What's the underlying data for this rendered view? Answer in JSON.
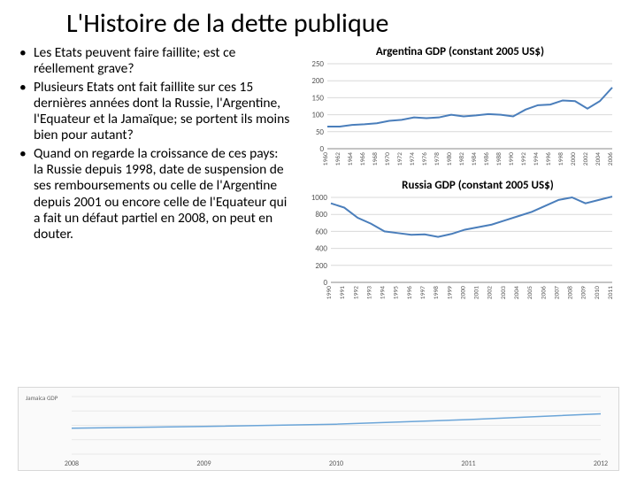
{
  "title": "L'Histoire de la dette publique",
  "bullets": [
    "Les Etats peuvent faire faillite; est ce réellement grave?",
    "Plusieurs Etats ont fait faillite sur ces 15 dernières années dont la Russie, l'Argentine, l'Equateur et la Jamaïque; se portent ils moins bien pour autant?",
    "Quand on regarde la croissance de ces pays: la Russie depuis 1998, date de suspension de ses remboursements ou celle de l'Argentine depuis 2001 ou encore celle de l'Equateur qui a fait un défaut partiel en 2008, on peut en douter."
  ],
  "chart1": {
    "title": "Argentina GDP (constant 2005 US$)",
    "type": "line",
    "ylim": [
      0,
      250
    ],
    "ytick_step": 50,
    "years": [
      1960,
      1962,
      1964,
      1966,
      1968,
      1970,
      1972,
      1974,
      1976,
      1978,
      1980,
      1982,
      1984,
      1986,
      1988,
      1990,
      1992,
      1994,
      1996,
      1998,
      2000,
      2002,
      2004,
      2006
    ],
    "values": [
      65,
      65,
      70,
      72,
      75,
      82,
      85,
      92,
      90,
      92,
      100,
      95,
      98,
      102,
      100,
      95,
      115,
      128,
      130,
      142,
      140,
      118,
      140,
      180
    ],
    "line_color": "#4a7ebb",
    "grid_color": "#d9d9d9",
    "bg": "#ffffff"
  },
  "chart2": {
    "title": "Russia GDP (constant 2005 US$)",
    "type": "line",
    "ylim": [
      0,
      1000
    ],
    "ytick_step": 200,
    "years": [
      1990,
      1991,
      1992,
      1993,
      1994,
      1995,
      1996,
      1997,
      1998,
      1999,
      2000,
      2001,
      2002,
      2003,
      2004,
      2005,
      2006,
      2007,
      2008,
      2009,
      2010,
      2011
    ],
    "values": [
      930,
      880,
      760,
      690,
      600,
      580,
      560,
      565,
      535,
      570,
      620,
      650,
      680,
      730,
      780,
      830,
      900,
      970,
      1000,
      930,
      970,
      1010
    ],
    "line_color": "#4a7ebb",
    "grid_color": "#d9d9d9",
    "bg": "#ffffff"
  },
  "chart3": {
    "label": "Jamaica GDP",
    "type": "line",
    "ylim": [
      0,
      1
    ],
    "yticks": 4,
    "years": [
      2008,
      2009,
      2010,
      2011,
      2012
    ],
    "line_color": "#6ba5d8",
    "grid_color": "#e8e8e8",
    "bg": "#fafafa"
  }
}
